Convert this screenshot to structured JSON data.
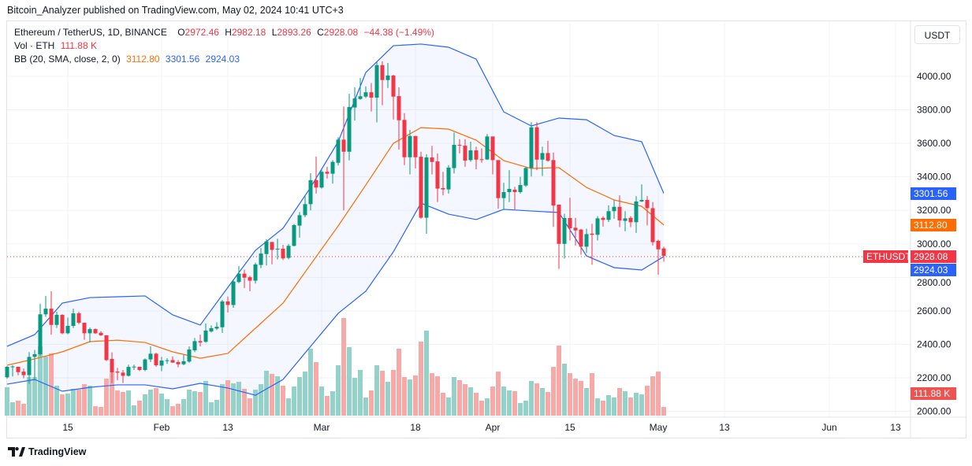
{
  "header": {
    "published": "Bitcoin_Analyzer published on TradingView.com, May 02, 2024 10:41 UTC+3"
  },
  "legend": {
    "symbol": "Ethereum / TetherUS, 1D, BINANCE",
    "o_label": "O",
    "o": "2972.46",
    "h_label": "H",
    "h": "2982.18",
    "l_label": "L",
    "l": "2893.26",
    "c_label": "C",
    "c": "2928.08",
    "change": "−44.38 (−1.49%)",
    "vol_label": "Vol · ETH",
    "vol": "111.88 K",
    "bb_label": "BB (20, SMA, close, 2, 0)",
    "bb_basis": "3112.80",
    "bb_upper": "3301.56",
    "bb_lower": "2924.03"
  },
  "price_axis": {
    "currency_button": "USDT"
  },
  "tags": {
    "symbol": "ETHUSDT",
    "last": "2928.08",
    "upper": "3301.56",
    "basis": "3112.80",
    "lower": "2924.03",
    "volume": "111.88 K"
  },
  "brand": {
    "logo_text": "TradingView"
  },
  "colors": {
    "up": "#089981",
    "down": "#f23645",
    "vol_up": "#92d2c9",
    "vol_down": "#f7a9a7",
    "bb_band": "#2962ff",
    "bb_basis": "#ff6d00",
    "bb_fill": "#2962ff"
  },
  "chart_data": {
    "type": "candlestick",
    "symbol": "ETHUSDT",
    "interval": "1D",
    "y_ticks": [
      "4000.00",
      "3800.00",
      "3600.00",
      "3400.00",
      "3200.00",
      "3000.00",
      "2800.00",
      "2600.00",
      "2400.00",
      "2200.00",
      "2000.00"
    ],
    "x_ticks": [
      {
        "label": "15",
        "date": "2024-01-15"
      },
      {
        "label": "Feb",
        "date": "2024-02-01"
      },
      {
        "label": "13",
        "date": "2024-02-13"
      },
      {
        "label": "Mar",
        "date": "2024-03-01"
      },
      {
        "label": "18",
        "date": "2024-03-18"
      },
      {
        "label": "Apr",
        "date": "2024-04-01"
      },
      {
        "label": "15",
        "date": "2024-04-15"
      },
      {
        "label": "May",
        "date": "2024-05-01"
      },
      {
        "label": "13",
        "date": "2024-05-13"
      },
      {
        "label": "Jun",
        "date": "2024-06-01"
      },
      {
        "label": "13",
        "date": "2024-06-13"
      }
    ],
    "grid": true,
    "ohlcv_columns": [
      "date",
      "open",
      "high",
      "low",
      "close",
      "volume_k"
    ],
    "ohlcv": [
      [
        "2024-01-04",
        2203,
        2270,
        2195,
        2266,
        367
      ],
      [
        "2024-01-05",
        2266,
        2275,
        2208,
        2268,
        173
      ],
      [
        "2024-01-06",
        2266,
        2266,
        2215,
        2234,
        194
      ],
      [
        "2024-01-07",
        2237,
        2255,
        2197,
        2216,
        153
      ],
      [
        "2024-01-08",
        2216,
        2353,
        2164,
        2325,
        500
      ],
      [
        "2024-01-09",
        2325,
        2367,
        2184,
        2341,
        500
      ],
      [
        "2024-01-10",
        2341,
        2642,
        2330,
        2579,
        898
      ],
      [
        "2024-01-11",
        2579,
        2689,
        2563,
        2613,
        765
      ],
      [
        "2024-01-12",
        2613,
        2717,
        2457,
        2516,
        806
      ],
      [
        "2024-01-13",
        2516,
        2595,
        2498,
        2576,
        388
      ],
      [
        "2024-01-14",
        2576,
        2580,
        2460,
        2466,
        275
      ],
      [
        "2024-01-15",
        2466,
        2560,
        2460,
        2510,
        286
      ],
      [
        "2024-01-16",
        2510,
        2613,
        2498,
        2585,
        347
      ],
      [
        "2024-01-17",
        2585,
        2595,
        2520,
        2529,
        337
      ],
      [
        "2024-01-18",
        2529,
        2529,
        2427,
        2466,
        408
      ],
      [
        "2024-01-19",
        2466,
        2500,
        2411,
        2491,
        388
      ],
      [
        "2024-01-20",
        2491,
        2495,
        2462,
        2466,
        122
      ],
      [
        "2024-01-21",
        2469,
        2479,
        2450,
        2454,
        112
      ],
      [
        "2024-01-22",
        2454,
        2454,
        2300,
        2306,
        479
      ],
      [
        "2024-01-23",
        2313,
        2352,
        2169,
        2231,
        551
      ],
      [
        "2024-01-24",
        2237,
        2259,
        2185,
        2231,
        326
      ],
      [
        "2024-01-25",
        2231,
        2247,
        2169,
        2212,
        306
      ],
      [
        "2024-01-26",
        2212,
        2278,
        2208,
        2265,
        326
      ],
      [
        "2024-01-27",
        2265,
        2278,
        2247,
        2267,
        133
      ],
      [
        "2024-01-28",
        2266,
        2266,
        2240,
        2247,
        194
      ],
      [
        "2024-01-29",
        2247,
        2316,
        2239,
        2310,
        275
      ],
      [
        "2024-01-30",
        2310,
        2388,
        2294,
        2344,
        337
      ],
      [
        "2024-01-31",
        2344,
        2350,
        2265,
        2275,
        357
      ],
      [
        "2024-02-01",
        2273,
        2325,
        2239,
        2303,
        286
      ],
      [
        "2024-02-02",
        2303,
        2317,
        2283,
        2305,
        214
      ],
      [
        "2024-02-03",
        2306,
        2328,
        2290,
        2291,
        122
      ],
      [
        "2024-02-04",
        2294,
        2306,
        2263,
        2281,
        153
      ],
      [
        "2024-02-05",
        2281,
        2338,
        2275,
        2299,
        214
      ],
      [
        "2024-02-06",
        2297,
        2388,
        2290,
        2369,
        337
      ],
      [
        "2024-02-07",
        2364,
        2438,
        2353,
        2419,
        316
      ],
      [
        "2024-02-08",
        2419,
        2458,
        2388,
        2411,
        306
      ],
      [
        "2024-02-09",
        2415,
        2524,
        2410,
        2482,
        449
      ],
      [
        "2024-02-10",
        2477,
        2513,
        2470,
        2496,
        173
      ],
      [
        "2024-02-11",
        2494,
        2532,
        2485,
        2505,
        204
      ],
      [
        "2024-02-12",
        2502,
        2665,
        2468,
        2656,
        408
      ],
      [
        "2024-02-13",
        2656,
        2685,
        2590,
        2635,
        459
      ],
      [
        "2024-02-14",
        2635,
        2782,
        2618,
        2775,
        418
      ],
      [
        "2024-02-15",
        2772,
        2868,
        2765,
        2822,
        439
      ],
      [
        "2024-02-16",
        2822,
        2846,
        2736,
        2798,
        347
      ],
      [
        "2024-02-17",
        2801,
        2810,
        2717,
        2780,
        224
      ],
      [
        "2024-02-18",
        2780,
        2887,
        2763,
        2877,
        337
      ],
      [
        "2024-02-19",
        2874,
        2975,
        2855,
        2942,
        408
      ],
      [
        "2024-02-20",
        2939,
        3027,
        2871,
        3015,
        581
      ],
      [
        "2024-02-21",
        3011,
        3011,
        2877,
        2964,
        541
      ],
      [
        "2024-02-22",
        2967,
        3030,
        2907,
        2971,
        510
      ],
      [
        "2024-02-23",
        2971,
        2994,
        2903,
        2913,
        388
      ],
      [
        "2024-02-24",
        2916,
        2999,
        2908,
        2988,
        224
      ],
      [
        "2024-02-25",
        2988,
        3118,
        2985,
        3112,
        377
      ],
      [
        "2024-02-26",
        3109,
        3190,
        3037,
        3171,
        500
      ],
      [
        "2024-02-27",
        3171,
        3285,
        3160,
        3237,
        571
      ],
      [
        "2024-02-28",
        3237,
        3422,
        3200,
        3380,
        867
      ],
      [
        "2024-02-29",
        3380,
        3521,
        3300,
        3336,
        694
      ],
      [
        "2024-03-01",
        3336,
        3440,
        3330,
        3430,
        377
      ],
      [
        "2024-03-02",
        3430,
        3460,
        3390,
        3419,
        255
      ],
      [
        "2024-03-03",
        3419,
        3500,
        3360,
        3489,
        316
      ],
      [
        "2024-03-04",
        3484,
        3637,
        3468,
        3622,
        653
      ],
      [
        "2024-03-05",
        3622,
        3820,
        3200,
        3550,
        1265
      ],
      [
        "2024-03-06",
        3550,
        3896,
        3498,
        3817,
        887
      ],
      [
        "2024-03-07",
        3814,
        3935,
        3736,
        3868,
        490
      ],
      [
        "2024-03-08",
        3865,
        3990,
        3860,
        3881,
        592
      ],
      [
        "2024-03-09",
        3879,
        3940,
        3870,
        3905,
        235
      ],
      [
        "2024-03-10",
        3905,
        3960,
        3790,
        3873,
        326
      ],
      [
        "2024-03-11",
        3873,
        4087,
        3725,
        4067,
        653
      ],
      [
        "2024-03-12",
        4067,
        4090,
        3828,
        3978,
        581
      ],
      [
        "2024-03-13",
        3978,
        4080,
        3930,
        4005,
        439
      ],
      [
        "2024-03-14",
        4005,
        4010,
        3742,
        3879,
        592
      ],
      [
        "2024-03-15",
        3882,
        3935,
        3563,
        3738,
        867
      ],
      [
        "2024-03-16",
        3740,
        3780,
        3470,
        3517,
        500
      ],
      [
        "2024-03-17",
        3517,
        3680,
        3415,
        3644,
        469
      ],
      [
        "2024-03-18",
        3644,
        3644,
        3450,
        3517,
        520
      ],
      [
        "2024-03-19",
        3520,
        3550,
        3150,
        3156,
        959
      ],
      [
        "2024-03-20",
        3156,
        3535,
        3060,
        3516,
        1102
      ],
      [
        "2024-03-21",
        3516,
        3585,
        3415,
        3489,
        551
      ],
      [
        "2024-03-22",
        3492,
        3540,
        3250,
        3330,
        510
      ],
      [
        "2024-03-23",
        3333,
        3430,
        3290,
        3325,
        296
      ],
      [
        "2024-03-24",
        3325,
        3470,
        3300,
        3455,
        235
      ],
      [
        "2024-03-25",
        3452,
        3665,
        3420,
        3591,
        500
      ],
      [
        "2024-03-26",
        3591,
        3625,
        3540,
        3588,
        459
      ],
      [
        "2024-03-27",
        3586,
        3625,
        3460,
        3497,
        408
      ],
      [
        "2024-03-28",
        3500,
        3610,
        3490,
        3558,
        367
      ],
      [
        "2024-03-29",
        3558,
        3580,
        3445,
        3503,
        296
      ],
      [
        "2024-03-30",
        3505,
        3570,
        3485,
        3504,
        194
      ],
      [
        "2024-03-31",
        3504,
        3655,
        3500,
        3641,
        224
      ],
      [
        "2024-04-01",
        3641,
        3641,
        3415,
        3500,
        377
      ],
      [
        "2024-04-02",
        3500,
        3500,
        3210,
        3273,
        571
      ],
      [
        "2024-04-03",
        3273,
        3365,
        3205,
        3309,
        377
      ],
      [
        "2024-04-04",
        3309,
        3440,
        3250,
        3328,
        326
      ],
      [
        "2024-04-05",
        3323,
        3340,
        3205,
        3309,
        316
      ],
      [
        "2024-04-06",
        3309,
        3400,
        3300,
        3351,
        163
      ],
      [
        "2024-04-07",
        3348,
        3460,
        3340,
        3453,
        194
      ],
      [
        "2024-04-08",
        3453,
        3727,
        3402,
        3696,
        449
      ],
      [
        "2024-04-09",
        3696,
        3727,
        3440,
        3503,
        418
      ],
      [
        "2024-04-10",
        3503,
        3580,
        3405,
        3542,
        357
      ],
      [
        "2024-04-11",
        3542,
        3615,
        3490,
        3496,
        306
      ],
      [
        "2024-04-12",
        3500,
        3545,
        3101,
        3229,
        632
      ],
      [
        "2024-04-13",
        3234,
        3234,
        2850,
        3000,
        908
      ],
      [
        "2024-04-14",
        3000,
        3180,
        2912,
        3154,
        673
      ],
      [
        "2024-04-15",
        3154,
        3275,
        3020,
        3093,
        551
      ],
      [
        "2024-04-16",
        3096,
        3155,
        2990,
        3080,
        479
      ],
      [
        "2024-04-17",
        3085,
        3090,
        2935,
        2983,
        449
      ],
      [
        "2024-04-18",
        2983,
        3090,
        2945,
        3058,
        357
      ],
      [
        "2024-04-19",
        3061,
        3120,
        2875,
        3054,
        551
      ],
      [
        "2024-04-20",
        3054,
        3165,
        3020,
        3152,
        224
      ],
      [
        "2024-04-21",
        3155,
        3165,
        3103,
        3143,
        194
      ],
      [
        "2024-04-22",
        3143,
        3230,
        3130,
        3195,
        265
      ],
      [
        "2024-04-23",
        3195,
        3260,
        3150,
        3221,
        235
      ],
      [
        "2024-04-24",
        3221,
        3290,
        3100,
        3140,
        357
      ],
      [
        "2024-04-25",
        3137,
        3195,
        3075,
        3152,
        316
      ],
      [
        "2024-04-26",
        3155,
        3165,
        3100,
        3129,
        235
      ],
      [
        "2024-04-27",
        3129,
        3285,
        3065,
        3253,
        296
      ],
      [
        "2024-04-28",
        3253,
        3355,
        3250,
        3262,
        275
      ],
      [
        "2024-04-29",
        3262,
        3285,
        3110,
        3213,
        388
      ],
      [
        "2024-04-30",
        3213,
        3250,
        2990,
        3010,
        510
      ],
      [
        "2024-05-01",
        3018,
        3025,
        2815,
        2967,
        571
      ],
      [
        "2024-05-02",
        2972.46,
        2982.18,
        2893.26,
        2928.08,
        111.88
      ]
    ],
    "bollinger_columns": [
      "date",
      "upper",
      "basis",
      "lower"
    ],
    "bollinger": [
      [
        "2024-01-04",
        2388,
        2275,
        2162
      ],
      [
        "2024-01-09",
        2458,
        2313,
        2190
      ],
      [
        "2024-01-14",
        2646,
        2355,
        2120
      ],
      [
        "2024-01-19",
        2679,
        2416,
        2143
      ],
      [
        "2024-01-24",
        2684,
        2425,
        2158
      ],
      [
        "2024-01-29",
        2689,
        2411,
        2158
      ],
      [
        "2024-02-03",
        2576,
        2355,
        2134
      ],
      [
        "2024-02-08",
        2515,
        2317,
        2167
      ],
      [
        "2024-02-13",
        2740,
        2346,
        2139
      ],
      [
        "2024-02-18",
        2961,
        2496,
        2096
      ],
      [
        "2024-02-23",
        3093,
        2646,
        2190
      ],
      [
        "2024-02-28",
        3337,
        2877,
        2388
      ],
      [
        "2024-03-04",
        3610,
        3107,
        2585
      ],
      [
        "2024-03-09",
        4023,
        3351,
        2717
      ],
      [
        "2024-03-14",
        4183,
        3600,
        2952
      ],
      [
        "2024-03-19",
        4193,
        3694,
        3243
      ],
      [
        "2024-03-24",
        4174,
        3685,
        3177
      ],
      [
        "2024-03-29",
        4103,
        3619,
        3145
      ],
      [
        "2024-04-03",
        3788,
        3497,
        3206
      ],
      [
        "2024-04-08",
        3704,
        3450,
        3196
      ],
      [
        "2024-04-13",
        3751,
        3455,
        3187
      ],
      [
        "2024-04-18",
        3741,
        3337,
        2928
      ],
      [
        "2024-04-23",
        3647,
        3262,
        2858
      ],
      [
        "2024-04-28",
        3610,
        3224,
        2844
      ],
      [
        "2024-05-02",
        3301.56,
        3112.8,
        2924.03
      ]
    ]
  }
}
